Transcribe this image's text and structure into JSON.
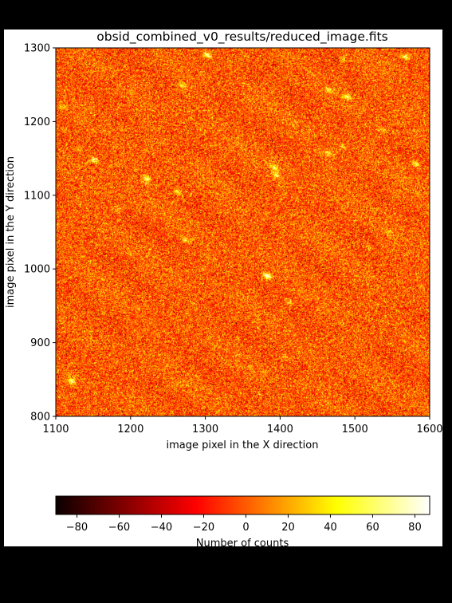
{
  "chart_data": [
    {
      "type": "heatmap",
      "title": "obsid_combined_v0_results/reduced_image.fits",
      "xlabel": "image pixel in the X direction",
      "ylabel": "image pixel in the Y direction",
      "xlim": [
        1100,
        1600
      ],
      "ylim": [
        800,
        1300
      ],
      "xticks": [
        1100,
        1200,
        1300,
        1400,
        1500,
        1600
      ],
      "yticks": [
        800,
        900,
        1000,
        1100,
        1200,
        1300
      ],
      "colormap": "hot",
      "sources": [
        {
          "x": 1382,
          "y": 991,
          "amp": 1.0
        },
        {
          "x": 1302,
          "y": 1291,
          "amp": 0.85
        },
        {
          "x": 1151,
          "y": 1148,
          "amp": 0.8
        },
        {
          "x": 1221,
          "y": 1123,
          "amp": 0.8
        },
        {
          "x": 1263,
          "y": 1105,
          "amp": 0.6
        },
        {
          "x": 1392,
          "y": 1138,
          "amp": 0.6
        },
        {
          "x": 1394,
          "y": 1128,
          "amp": 0.6
        },
        {
          "x": 1489,
          "y": 1234,
          "amp": 0.75
        },
        {
          "x": 1465,
          "y": 1243,
          "amp": 0.5
        },
        {
          "x": 1567,
          "y": 1288,
          "amp": 0.65
        },
        {
          "x": 1581,
          "y": 1143,
          "amp": 0.65
        },
        {
          "x": 1464,
          "y": 1158,
          "amp": 0.55
        },
        {
          "x": 1483,
          "y": 1166,
          "amp": 0.4
        },
        {
          "x": 1121,
          "y": 848,
          "amp": 0.8
        },
        {
          "x": 1273,
          "y": 1040,
          "amp": 0.55
        },
        {
          "x": 1270,
          "y": 1249,
          "amp": 0.5
        },
        {
          "x": 1412,
          "y": 955,
          "amp": 0.45
        },
        {
          "x": 1484,
          "y": 1285,
          "amp": 0.35
        },
        {
          "x": 1130,
          "y": 1163,
          "amp": 0.3
        },
        {
          "x": 1536,
          "y": 1190,
          "amp": 0.35
        },
        {
          "x": 1405,
          "y": 880,
          "amp": 0.35
        },
        {
          "x": 1183,
          "y": 1083,
          "amp": 0.3
        },
        {
          "x": 1110,
          "y": 1190,
          "amp": 0.3
        },
        {
          "x": 1108,
          "y": 1220,
          "amp": 0.35
        },
        {
          "x": 1545,
          "y": 1050,
          "amp": 0.3
        },
        {
          "x": 1520,
          "y": 1030,
          "amp": 0.25
        }
      ]
    },
    {
      "type": "colorbar",
      "label": "Number of counts",
      "range": [
        -90,
        87
      ],
      "ticks": [
        -80,
        -60,
        -40,
        -20,
        0,
        20,
        40,
        60,
        80
      ],
      "tick_labels": [
        "−80",
        "−60",
        "−40",
        "−20",
        "0",
        "20",
        "40",
        "60",
        "80"
      ],
      "colormap": "hot"
    }
  ]
}
